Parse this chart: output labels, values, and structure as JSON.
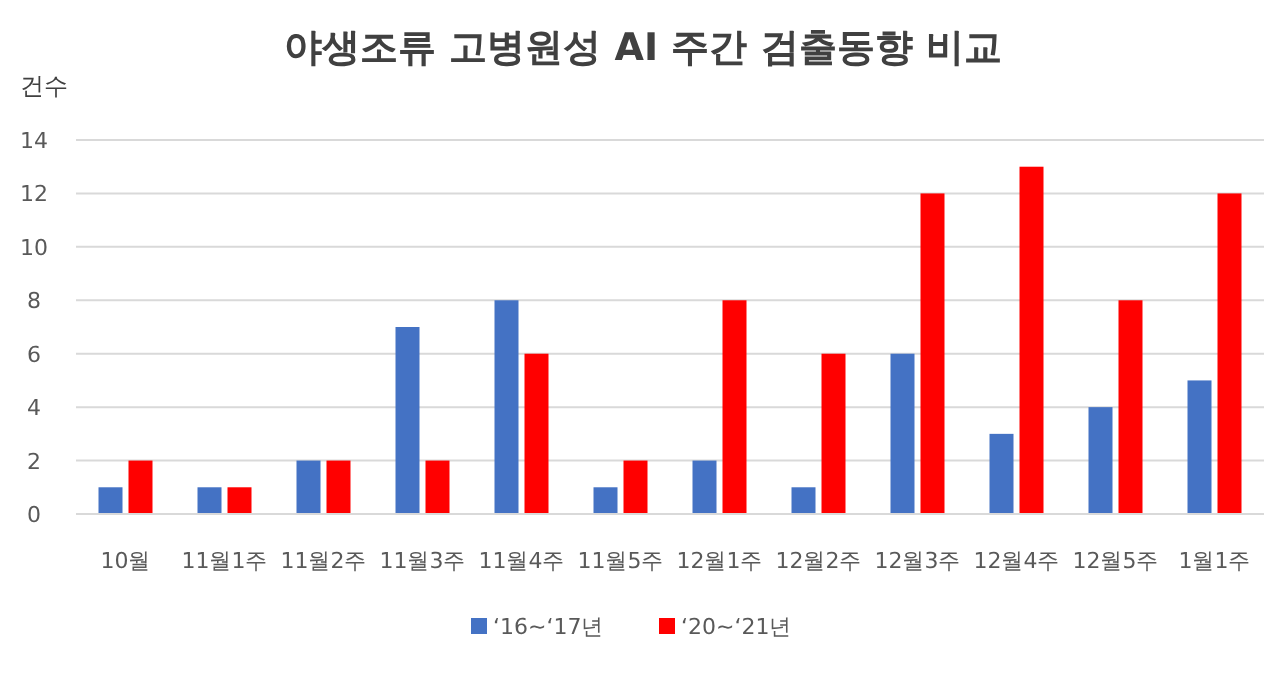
{
  "chart_data": {
    "type": "bar",
    "title": "야생조류 고병원성 AI 주간 검출동향 비교",
    "ylabel": "건수",
    "categories": [
      "10월",
      "11월1주",
      "11월2주",
      "11월3주",
      "11월4주",
      "11월5주",
      "12월1주",
      "12월2주",
      "12월3주",
      "12월4주",
      "12월5주",
      "1월1주"
    ],
    "series": [
      {
        "name": "‘16~‘17년",
        "color": "#4472c4",
        "values": [
          1,
          1,
          2,
          7,
          8,
          1,
          2,
          1,
          6,
          3,
          4,
          5
        ]
      },
      {
        "name": "‘20~‘21년",
        "color": "#ff0000",
        "values": [
          2,
          1,
          2,
          2,
          6,
          2,
          8,
          6,
          12,
          13,
          8,
          12
        ]
      }
    ],
    "ylim": [
      0,
      14
    ],
    "yticks": [
      0,
      2,
      4,
      6,
      8,
      10,
      12,
      14
    ],
    "grid": "y",
    "legend": "bottom"
  }
}
